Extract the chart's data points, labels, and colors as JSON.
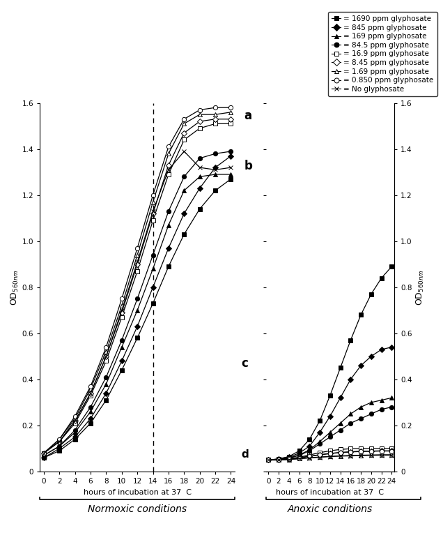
{
  "normoxic": {
    "x": [
      0,
      2,
      4,
      6,
      8,
      10,
      12,
      14,
      16,
      18,
      20,
      22,
      24
    ],
    "series": {
      "1690": [
        0.06,
        0.09,
        0.14,
        0.21,
        0.31,
        0.44,
        0.58,
        0.73,
        0.89,
        1.03,
        1.14,
        1.22,
        1.27
      ],
      "845": [
        0.06,
        0.1,
        0.15,
        0.23,
        0.34,
        0.48,
        0.63,
        0.8,
        0.97,
        1.12,
        1.23,
        1.32,
        1.37
      ],
      "169": [
        0.07,
        0.11,
        0.17,
        0.26,
        0.38,
        0.54,
        0.7,
        0.88,
        1.07,
        1.22,
        1.28,
        1.29,
        1.29
      ],
      "84.5": [
        0.07,
        0.11,
        0.18,
        0.28,
        0.41,
        0.57,
        0.75,
        0.94,
        1.13,
        1.28,
        1.36,
        1.38,
        1.39
      ],
      "16.9": [
        0.08,
        0.13,
        0.21,
        0.33,
        0.48,
        0.67,
        0.87,
        1.09,
        1.29,
        1.44,
        1.49,
        1.51,
        1.51
      ],
      "8.45": [
        0.08,
        0.13,
        0.22,
        0.34,
        0.5,
        0.69,
        0.9,
        1.12,
        1.33,
        1.47,
        1.52,
        1.53,
        1.53
      ],
      "1.69": [
        0.08,
        0.14,
        0.23,
        0.36,
        0.52,
        0.72,
        0.94,
        1.17,
        1.38,
        1.51,
        1.55,
        1.55,
        1.56
      ],
      "0.850": [
        0.08,
        0.14,
        0.24,
        0.37,
        0.54,
        0.75,
        0.97,
        1.2,
        1.41,
        1.53,
        1.57,
        1.58,
        1.58
      ],
      "0": [
        0.08,
        0.13,
        0.22,
        0.34,
        0.5,
        0.7,
        0.91,
        1.13,
        1.31,
        1.39,
        1.32,
        1.31,
        1.32
      ]
    }
  },
  "anoxic": {
    "x": [
      0,
      2,
      4,
      6,
      8,
      10,
      12,
      14,
      16,
      18,
      20,
      22,
      24
    ],
    "series": {
      "1690": [
        0.05,
        0.055,
        0.065,
        0.09,
        0.14,
        0.22,
        0.33,
        0.45,
        0.57,
        0.68,
        0.77,
        0.84,
        0.89
      ],
      "845": [
        0.05,
        0.055,
        0.063,
        0.08,
        0.11,
        0.17,
        0.24,
        0.32,
        0.4,
        0.46,
        0.5,
        0.53,
        0.54
      ],
      "169": [
        0.05,
        0.052,
        0.06,
        0.072,
        0.094,
        0.13,
        0.17,
        0.21,
        0.25,
        0.28,
        0.3,
        0.31,
        0.32
      ],
      "84.5": [
        0.05,
        0.052,
        0.058,
        0.07,
        0.09,
        0.12,
        0.15,
        0.18,
        0.21,
        0.23,
        0.25,
        0.27,
        0.28
      ],
      "16.9": [
        0.05,
        0.052,
        0.056,
        0.062,
        0.072,
        0.082,
        0.09,
        0.096,
        0.099,
        0.1,
        0.1,
        0.1,
        0.1
      ],
      "8.45": [
        0.05,
        0.051,
        0.054,
        0.06,
        0.067,
        0.073,
        0.079,
        0.083,
        0.086,
        0.088,
        0.089,
        0.09,
        0.09
      ],
      "1.69": [
        0.05,
        0.05,
        0.052,
        0.056,
        0.06,
        0.063,
        0.066,
        0.068,
        0.07,
        0.071,
        0.072,
        0.073,
        0.073
      ],
      "0.850": [
        0.05,
        0.051,
        0.054,
        0.059,
        0.066,
        0.072,
        0.078,
        0.082,
        0.085,
        0.087,
        0.088,
        0.089,
        0.089
      ],
      "0": [
        0.05,
        0.05,
        0.052,
        0.056,
        0.059,
        0.062,
        0.065,
        0.067,
        0.068,
        0.069,
        0.07,
        0.071,
        0.071
      ]
    }
  },
  "legend_labels": [
    "= 1690 ppm glyphosate",
    "= 845 ppm glyphosate",
    "= 169 ppm glyphosate",
    "= 84.5 ppm glyphosate",
    "= 16.9 ppm glyphosate",
    "= 8.45 ppm glyphosate",
    "= 1.69 ppm glyphosate",
    "= 0.850 ppm glyphosate",
    "= No glyphosate"
  ],
  "markers": [
    "s",
    "D",
    "^",
    "o",
    "s",
    "D",
    "^",
    "o",
    "x"
  ],
  "fillstyles": [
    "full",
    "full",
    "full",
    "full",
    "none",
    "none",
    "none",
    "none",
    "full"
  ],
  "dashed_line_x": 14,
  "ylim": [
    0,
    1.6
  ],
  "yticks": [
    0,
    0.2,
    0.4,
    0.6,
    0.8,
    1.0,
    1.2,
    1.4,
    1.6
  ],
  "xticks_normoxic": [
    0,
    2,
    4,
    6,
    8,
    10,
    12,
    14,
    16,
    18,
    20,
    22,
    24
  ],
  "xticks_anoxic": [
    0,
    2,
    4,
    6,
    8,
    10,
    12,
    14,
    16,
    18,
    20,
    22,
    24
  ],
  "xlabel": "hours of incubation at 37  C",
  "ylabel_left": "OD$_{560nm}$",
  "ylabel_right": "OD$_{560nm}$",
  "label_normoxic": "Normoxic conditions",
  "label_anoxic": "Anoxic conditions"
}
